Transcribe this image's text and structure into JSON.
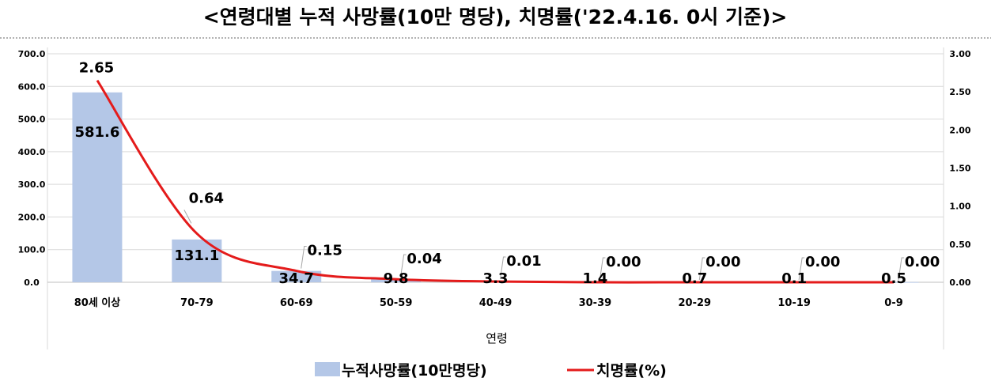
{
  "chart_data": {
    "type": "bar",
    "title": "<연령대별 누적 사망률(10만 명당), 치명률('22.4.16. 0시 기준)>",
    "xlabel": "연령",
    "categories": [
      "80세 이상",
      "70-79",
      "60-69",
      "50-59",
      "40-49",
      "30-39",
      "20-29",
      "10-19",
      "0-9"
    ],
    "left_axis": {
      "ylim": [
        0,
        700
      ],
      "ticks": [
        "0.0",
        "100.0",
        "200.0",
        "300.0",
        "400.0",
        "500.0",
        "600.0",
        "700.0"
      ]
    },
    "right_axis": {
      "ylim": [
        0,
        3
      ],
      "ticks": [
        "0.00",
        "0.50",
        "1.00",
        "1.50",
        "2.00",
        "2.50",
        "3.00"
      ]
    },
    "series": [
      {
        "name": "누적사망률(10만명당)",
        "type": "bar",
        "axis": "left",
        "color": "#b4c7e7",
        "values": [
          581.6,
          131.1,
          34.7,
          9.8,
          3.3,
          1.4,
          0.7,
          0.1,
          0.5
        ],
        "labels": [
          "581.6",
          "131.1",
          "34.7",
          "9.8",
          "3.3",
          "1.4",
          "0.7",
          "0.1",
          "0.5"
        ]
      },
      {
        "name": "치명률(%)",
        "type": "line",
        "axis": "right",
        "color": "#e41b1b",
        "values": [
          2.65,
          0.64,
          0.15,
          0.04,
          0.01,
          0.0,
          0.0,
          0.0,
          0.0
        ],
        "labels": [
          "2.65",
          "0.64",
          "0.15",
          "0.04",
          "0.01",
          "0.00",
          "0.00",
          "0.00",
          "0.00"
        ]
      }
    ],
    "grid": true,
    "legend": "bottom"
  }
}
